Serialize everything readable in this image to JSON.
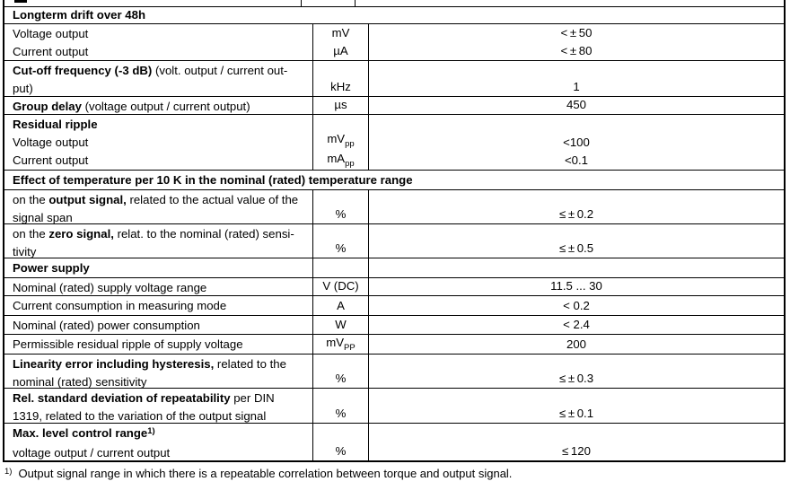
{
  "colors": {
    "border": "#000000",
    "text": "#000000",
    "background": "#ffffff"
  },
  "table": {
    "rows": [
      {
        "id": "clipped-partial-row",
        "kind": "clipped"
      },
      {
        "id": "longterm-drift-header",
        "kind": "section_span",
        "label": [
          {
            "t": "Longterm drift over 48h",
            "b": true
          }
        ]
      },
      {
        "id": "longterm-drift-values",
        "kind": "group",
        "lines": [
          "Voltage output",
          "Current output"
        ],
        "units": [
          {
            "base": "mV"
          },
          {
            "base": "µA"
          }
        ],
        "values": [
          "< ± 50",
          "< ± 80"
        ]
      },
      {
        "id": "cutoff-frequency",
        "kind": "param",
        "label": [
          {
            "t": "Cut-off frequency (-3 dB) ",
            "b": true
          },
          {
            "t": "(volt. output / current out-"
          },
          {
            "br": true
          },
          {
            "t": "put)"
          }
        ],
        "unit": {
          "base": "kHz"
        },
        "value": "1"
      },
      {
        "id": "group-delay",
        "kind": "param",
        "label": [
          {
            "t": "Group delay ",
            "b": true
          },
          {
            "t": "(voltage output / current output)"
          }
        ],
        "unit": {
          "base": "µs"
        },
        "value": "450"
      },
      {
        "id": "residual-ripple",
        "kind": "group",
        "title": [
          {
            "t": "Residual ripple",
            "b": true
          }
        ],
        "lines": [
          "Voltage output",
          "Current output"
        ],
        "units": [
          {
            "base": "mV",
            "sub": "pp"
          },
          {
            "base": "mA",
            "sub": "pp"
          }
        ],
        "values": [
          "<100",
          "<0.1"
        ]
      },
      {
        "id": "temperature-effect-header",
        "kind": "section_span",
        "label": [
          {
            "t": "Effect of temperature per 10 K in the nominal (rated) temperature range",
            "b": true
          }
        ]
      },
      {
        "id": "temp-effect-output-signal",
        "kind": "param",
        "label": [
          {
            "t": "on the "
          },
          {
            "t": "output signal,",
            "b": true
          },
          {
            "t": " related to the actual value of the"
          },
          {
            "br": true
          },
          {
            "t": "signal span"
          }
        ],
        "unit": {
          "base": "%"
        },
        "value": "≤ ± 0.2"
      },
      {
        "id": "temp-effect-zero-signal",
        "kind": "param",
        "label": [
          {
            "t": "on the "
          },
          {
            "t": "zero signal,",
            "b": true
          },
          {
            "t": " relat. to the nominal (rated) sensi-"
          },
          {
            "br": true
          },
          {
            "t": "tivity"
          }
        ],
        "unit": {
          "base": "%"
        },
        "value": "≤ ± 0.5"
      },
      {
        "id": "power-supply-header",
        "kind": "section_cells",
        "label": [
          {
            "t": "Power supply",
            "b": true
          }
        ]
      },
      {
        "id": "supply-voltage-range",
        "kind": "param",
        "label": [
          {
            "t": "Nominal (rated) supply voltage range"
          }
        ],
        "unit": {
          "base": "V (DC)"
        },
        "value": "11.5 ... 30"
      },
      {
        "id": "current-consumption",
        "kind": "param",
        "label": [
          {
            "t": "Current consumption in measuring mode"
          }
        ],
        "unit": {
          "base": "A"
        },
        "value": "< 0.2"
      },
      {
        "id": "power-consumption",
        "kind": "param",
        "label": [
          {
            "t": "Nominal (rated) power consumption"
          }
        ],
        "unit": {
          "base": "W"
        },
        "value": "< 2.4"
      },
      {
        "id": "supply-residual-ripple",
        "kind": "param",
        "label": [
          {
            "t": "Permissible residual ripple of supply voltage"
          }
        ],
        "unit": {
          "base": "mV",
          "sub": "PP"
        },
        "value": "200"
      },
      {
        "id": "linearity-error",
        "kind": "param",
        "label": [
          {
            "t": "Linearity error including hysteresis,",
            "b": true
          },
          {
            "t": " related to the"
          },
          {
            "br": true
          },
          {
            "t": "nominal (rated) sensitivity"
          }
        ],
        "unit": {
          "base": "%"
        },
        "value": "≤ ± 0.3"
      },
      {
        "id": "repeatability-deviation",
        "kind": "param",
        "label": [
          {
            "t": "Rel. standard deviation of repeatability",
            "b": true
          },
          {
            "t": " per DIN"
          },
          {
            "br": true
          },
          {
            "t": "1319, related to the variation of the output signal"
          }
        ],
        "unit": {
          "base": "%"
        },
        "value": "≤ ± 0.1"
      },
      {
        "id": "max-level-control-range",
        "kind": "group",
        "title": [
          {
            "t": "Max. level control range",
            "b": true
          },
          {
            "t": "1)",
            "b": true,
            "sup": true
          }
        ],
        "lines": [
          "voltage output / current output"
        ],
        "units": [
          {
            "base": "%"
          }
        ],
        "values": [
          "≤ 120"
        ]
      }
    ]
  },
  "footnote": {
    "marker": "1)",
    "text": "Output signal range in which there is a repeatable correlation between torque and output signal."
  }
}
